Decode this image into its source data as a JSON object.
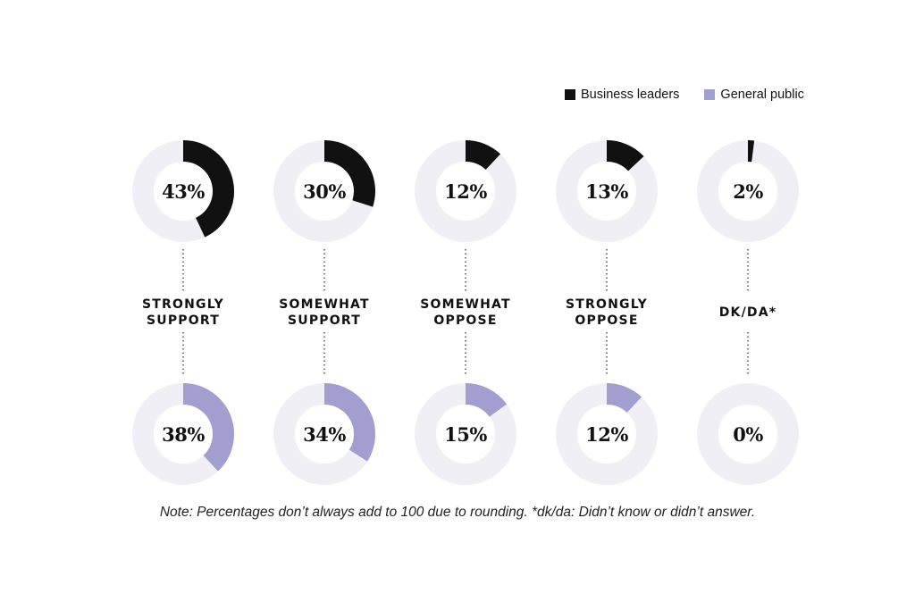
{
  "legend": {
    "items": [
      {
        "label": "Business leaders",
        "color": "#111111"
      },
      {
        "label": "General public",
        "color": "#a29fd0"
      }
    ]
  },
  "note": "Note: Percentages don’t always add to 100 due to rounding. *dk/da: Didn’t know or didn’t answer.",
  "colors": {
    "track": "#efeff5",
    "business": "#111111",
    "public": "#a29fd0",
    "dots": "#333333"
  },
  "chart_data": {
    "type": "donut",
    "series": [
      {
        "name": "Business leaders",
        "values": [
          43,
          30,
          12,
          13,
          2
        ],
        "labels": [
          "43%",
          "30%",
          "12%",
          "13%",
          "2%"
        ]
      },
      {
        "name": "General public",
        "values": [
          38,
          34,
          15,
          12,
          0
        ],
        "labels": [
          "38%",
          "34%",
          "15%",
          "12%",
          "0%"
        ]
      }
    ],
    "categories": [
      {
        "lines": [
          "STRONGLY",
          "SUPPORT"
        ]
      },
      {
        "lines": [
          "SOMEWHAT",
          "SUPPORT"
        ]
      },
      {
        "lines": [
          "SOMEWHAT",
          "OPPOSE"
        ]
      },
      {
        "lines": [
          "STRONGLY",
          "OPPOSE"
        ]
      },
      {
        "lines": [
          "DK/DA*"
        ]
      }
    ]
  }
}
